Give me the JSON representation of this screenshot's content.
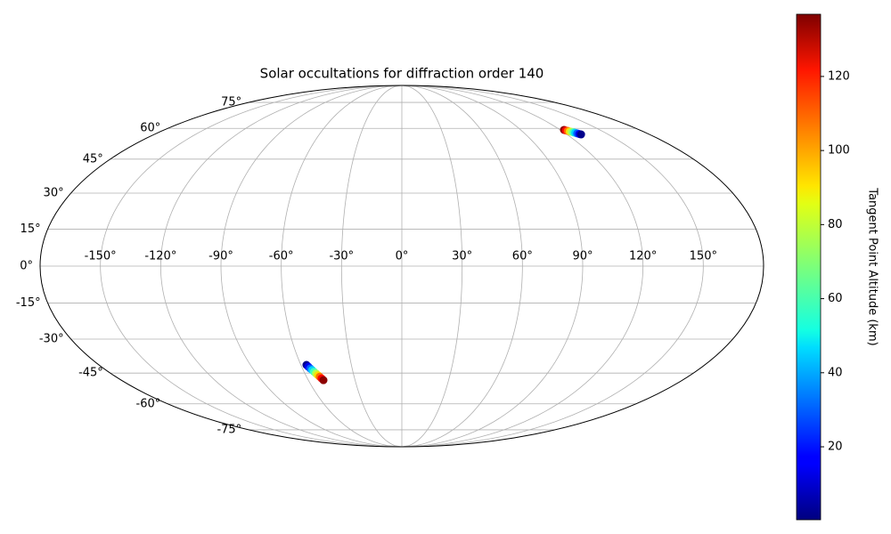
{
  "chart_data": {
    "type": "scatter",
    "projection": "mollweide",
    "title": "Solar occultations for diffraction order 140",
    "colorbar_label": "Tangent Point Altitude (km)",
    "cmap": "jet",
    "grid": true,
    "xlim": [
      -180,
      180
    ],
    "ylim": [
      -90,
      90
    ],
    "xticks": [
      {
        "value": -150,
        "label": "-150°"
      },
      {
        "value": -120,
        "label": "-120°"
      },
      {
        "value": -90,
        "label": "-90°"
      },
      {
        "value": -60,
        "label": "-60°"
      },
      {
        "value": -30,
        "label": "-30°"
      },
      {
        "value": 0,
        "label": "0°"
      },
      {
        "value": 30,
        "label": "30°"
      },
      {
        "value": 60,
        "label": "60°"
      },
      {
        "value": 90,
        "label": "90°"
      },
      {
        "value": 120,
        "label": "120°"
      },
      {
        "value": 150,
        "label": "150°"
      }
    ],
    "yticks": [
      {
        "value": -75,
        "label": "-75°"
      },
      {
        "value": -60,
        "label": "-60°"
      },
      {
        "value": -45,
        "label": "-45°"
      },
      {
        "value": -30,
        "label": "-30°"
      },
      {
        "value": -15,
        "label": "-15°"
      },
      {
        "value": 0,
        "label": "0°"
      },
      {
        "value": 15,
        "label": "15°"
      },
      {
        "value": 30,
        "label": "30°"
      },
      {
        "value": 45,
        "label": "45°"
      },
      {
        "value": 60,
        "label": "60°"
      },
      {
        "value": 75,
        "label": "75°"
      }
    ],
    "clim": [
      0.3,
      136.8
    ],
    "cticks": [
      20,
      40,
      60,
      80,
      100,
      120
    ],
    "x": [
      122.8,
      123.6,
      124.5,
      125.3,
      126.1,
      127.0,
      127.8,
      128.6,
      129.5,
      130.3,
      -56.7,
      -56.0,
      -55.3,
      -54.6,
      -53.9,
      -53.1,
      -52.4,
      -51.7,
      -51.0,
      -50.3
    ],
    "values": [
      59.2,
      58.9,
      58.7,
      58.4,
      58.2,
      57.9,
      57.7,
      57.4,
      57.1,
      56.9,
      -41.3,
      -42.1,
      -42.9,
      -43.6,
      -44.4,
      -45.2,
      -46.0,
      -46.7,
      -47.5,
      -48.3
    ],
    "color_values": [
      135,
      120,
      105,
      90,
      75,
      60,
      45,
      30,
      15,
      2,
      2,
      15,
      30,
      45,
      60,
      75,
      90,
      105,
      120,
      135
    ]
  }
}
